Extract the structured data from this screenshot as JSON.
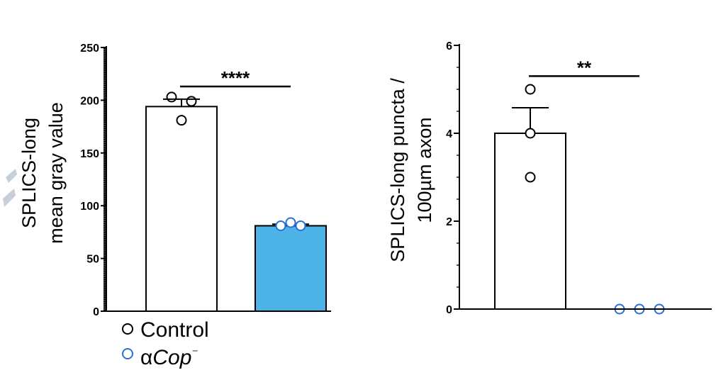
{
  "chart_data": [
    {
      "type": "bar",
      "ylabel": [
        "SPLICS-long",
        "mean gray value"
      ],
      "ylim": [
        0,
        250
      ],
      "yticks": [
        0,
        50,
        100,
        150,
        200,
        250
      ],
      "yticks_minor": 50,
      "categories": [
        "Control",
        "αCop⁻"
      ],
      "values": [
        194,
        81
      ],
      "errors": [
        7,
        1.5
      ],
      "bar_colors": [
        "#ffffff",
        "#4db3e6"
      ],
      "points": [
        [
          203,
          199,
          181
        ],
        [
          81,
          84,
          81
        ]
      ],
      "point_colors": [
        "#000000",
        "#2a6fd6"
      ],
      "significance": {
        "label": "****",
        "from": 0,
        "to": 1,
        "y": 213
      }
    },
    {
      "type": "bar",
      "ylabel": [
        "SPLICS-long puncta /",
        "100µm axon"
      ],
      "ylim": [
        0,
        6
      ],
      "yticks": [
        0,
        2,
        4,
        6
      ],
      "yticks_minor": 4,
      "categories": [
        "Control",
        "αCop⁻"
      ],
      "values": [
        4,
        0
      ],
      "errors": [
        0.58,
        0
      ],
      "bar_colors": [
        "#ffffff",
        "#4db3e6"
      ],
      "points": [
        [
          5,
          4,
          3
        ],
        [
          0,
          0,
          0
        ]
      ],
      "point_colors": [
        "#000000",
        "#2a6fd6"
      ],
      "significance": {
        "label": "**",
        "from": 0,
        "to": 1,
        "y": 5.3
      }
    }
  ],
  "legend": {
    "position": "bottom-left",
    "items": [
      {
        "label": "Control",
        "prefix": "",
        "italic": "",
        "suffix": "",
        "color": "#000000"
      },
      {
        "label": "αCop⁻",
        "prefix": "α",
        "italic": "Cop",
        "suffix": "⁻",
        "color": "#2a6fd6"
      }
    ]
  }
}
